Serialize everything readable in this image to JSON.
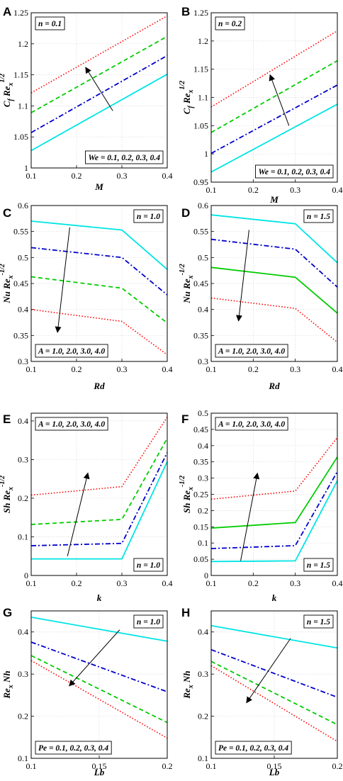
{
  "chart_data": [
    {
      "letter": "A",
      "type": "line",
      "xlim": [
        0.1,
        0.4
      ],
      "ylim": [
        1.0,
        1.25
      ],
      "xticks": [
        "0.1",
        "0.2",
        "0.3",
        "0.4"
      ],
      "yticks": [
        "1",
        "1.05",
        "1.1",
        "1.15",
        "1.2",
        "1.25"
      ],
      "xlabel": "M",
      "ylabel_parts": {
        "a": "C",
        "a_sub": "f",
        "b": " Re",
        "b_sub": "x",
        "b_sup": "1/2"
      },
      "annot_top": "n = 0.1",
      "annot_bottom": "We = 0.1, 0.2, 0.3, 0.4",
      "x": [
        0.1,
        0.4
      ],
      "series": [
        {
          "values": [
            1.028,
            1.151
          ],
          "color": "#00e5e5",
          "dash": "solid"
        },
        {
          "values": [
            1.057,
            1.181
          ],
          "color": "#0000cc",
          "dash": "dashdot"
        },
        {
          "values": [
            1.089,
            1.212
          ],
          "color": "#00cc00",
          "dash": "dashed"
        },
        {
          "values": [
            1.121,
            1.245
          ],
          "color": "#ff0000",
          "dash": "dotted"
        }
      ],
      "arrow": [
        [
          0.28,
          1.092
        ],
        [
          0.22,
          1.162
        ]
      ]
    },
    {
      "letter": "B",
      "type": "line",
      "xlim": [
        0.1,
        0.4
      ],
      "ylim": [
        0.95,
        1.25
      ],
      "xticks": [
        "0.1",
        "0.2",
        "0.3",
        "0.4"
      ],
      "yticks": [
        "0.95",
        "1",
        "1.05",
        "1.1",
        "1.15",
        "1.2",
        "1.25"
      ],
      "xlabel": "M",
      "ylabel_parts": {
        "a": "C",
        "a_sub": "f",
        "b": " Re",
        "b_sub": "x",
        "b_sup": "1/2"
      },
      "annot_top": "n = 0.2",
      "annot_bottom": "We = 0.1, 0.2, 0.3, 0.4",
      "x": [
        0.1,
        0.4
      ],
      "series": [
        {
          "values": [
            0.968,
            1.088
          ],
          "color": "#00e5e5",
          "dash": "solid"
        },
        {
          "values": [
            1.001,
            1.122
          ],
          "color": "#0000cc",
          "dash": "dashdot"
        },
        {
          "values": [
            1.038,
            1.165
          ],
          "color": "#00cc00",
          "dash": "dashed"
        },
        {
          "values": [
            1.083,
            1.218
          ],
          "color": "#ff0000",
          "dash": "dotted"
        }
      ],
      "arrow": [
        [
          0.285,
          1.05
        ],
        [
          0.24,
          1.14
        ]
      ]
    },
    {
      "letter": "C",
      "type": "line",
      "xlim": [
        0.1,
        0.4
      ],
      "ylim": [
        0.3,
        0.6
      ],
      "xticks": [
        "0.1",
        "0.2",
        "0.3",
        "0.4"
      ],
      "yticks": [
        "0.3",
        "0.35",
        "0.4",
        "0.45",
        "0.5",
        "0.55",
        "0.6"
      ],
      "xlabel": "Rd",
      "ylabel_parts": {
        "a": "Nu",
        "a_sub": "",
        "b": " Re",
        "b_sub": "x",
        "b_sup": "-1/2"
      },
      "annot_top": "n = 1.0",
      "annot_bottom": "A = 1.0, 2.0, 3.0, 4.0",
      "x": [
        0.1,
        0.3,
        0.4
      ],
      "series": [
        {
          "values": [
            0.57,
            0.553,
            0.477
          ],
          "color": "#00e5e5",
          "dash": "solid"
        },
        {
          "values": [
            0.519,
            0.5,
            0.428
          ],
          "color": "#0000cc",
          "dash": "dashdot"
        },
        {
          "values": [
            0.463,
            0.441,
            0.374
          ],
          "color": "#00cc00",
          "dash": "dashed"
        },
        {
          "values": [
            0.4,
            0.377,
            0.313
          ],
          "color": "#ff0000",
          "dash": "dotted"
        }
      ],
      "arrow": [
        [
          0.185,
          0.558
        ],
        [
          0.158,
          0.356
        ]
      ]
    },
    {
      "letter": "D",
      "type": "line",
      "xlim": [
        0.1,
        0.4
      ],
      "ylim": [
        0.3,
        0.6
      ],
      "xticks": [
        "0.1",
        "0.2",
        "0.3",
        "0.4"
      ],
      "yticks": [
        "0.3",
        "0.35",
        "0.4",
        "0.45",
        "0.5",
        "0.55",
        "0.6"
      ],
      "xlabel": "Rd",
      "ylabel_parts": {
        "a": "Nu",
        "a_sub": "",
        "b": " Re",
        "b_sub": "x",
        "b_sup": "-1/2"
      },
      "annot_top": "n = 1.5",
      "annot_bottom": "A = 1.0, 2.0, 3.0, 4.0",
      "x": [
        0.1,
        0.3,
        0.4
      ],
      "series": [
        {
          "values": [
            0.582,
            0.565,
            0.49
          ],
          "color": "#00e5e5",
          "dash": "solid"
        },
        {
          "values": [
            0.535,
            0.516,
            0.443
          ],
          "color": "#0000cc",
          "dash": "dashdot"
        },
        {
          "values": [
            0.481,
            0.462,
            0.393
          ],
          "color": "#00cc00",
          "dash": "solid"
        },
        {
          "values": [
            0.422,
            0.402,
            0.337
          ],
          "color": "#ff0000",
          "dash": "dotted"
        }
      ],
      "arrow": [
        [
          0.19,
          0.553
        ],
        [
          0.165,
          0.378
        ]
      ]
    },
    {
      "letter": "E",
      "type": "line",
      "xlim": [
        0.1,
        0.4
      ],
      "ylim": [
        0.0,
        0.42
      ],
      "xticks": [
        "0.1",
        "0.2",
        "0.3",
        "0.4"
      ],
      "yticks": [
        "0",
        "0.1",
        "0.2",
        "0.3",
        "0.4"
      ],
      "xlabel": "k",
      "ylabel_parts": {
        "a": "Sh",
        "a_sub": "",
        "b": " Re",
        "b_sub": "x",
        "b_sup": "-1/2"
      },
      "annot_top": "A = 1.0, 2.0, 3.0, 4.0",
      "annot_bottom": "n = 1.0",
      "x": [
        0.1,
        0.3,
        0.4
      ],
      "series": [
        {
          "values": [
            0.043,
            0.043,
            0.295
          ],
          "color": "#00e5e5",
          "dash": "solid"
        },
        {
          "values": [
            0.077,
            0.083,
            0.318
          ],
          "color": "#0000cc",
          "dash": "dashdot"
        },
        {
          "values": [
            0.132,
            0.145,
            0.355
          ],
          "color": "#00cc00",
          "dash": "dashed"
        },
        {
          "values": [
            0.208,
            0.23,
            0.41
          ],
          "color": "#ff0000",
          "dash": "dotted"
        }
      ],
      "arrow": [
        [
          0.18,
          0.05
        ],
        [
          0.225,
          0.265
        ]
      ]
    },
    {
      "letter": "F",
      "type": "line",
      "xlim": [
        0.1,
        0.4
      ],
      "ylim": [
        0.0,
        0.5
      ],
      "xticks": [
        "0.1",
        "0.2",
        "0.3",
        "0.4"
      ],
      "yticks": [
        "0",
        "0.05",
        "0.1",
        "0.15",
        "0.2",
        "0.25",
        "0.3",
        "0.35",
        "0.4",
        "0.45",
        "0.5"
      ],
      "xlabel": "k",
      "ylabel_parts": {
        "a": "Sh",
        "a_sub": "",
        "b": " Re",
        "b_sub": "x",
        "b_sup": "-1/2"
      },
      "annot_top": "A = 1.0, 2.0, 3.0, 4.0",
      "annot_bottom": "n = 1.5",
      "x": [
        0.1,
        0.3,
        0.4
      ],
      "series": [
        {
          "values": [
            0.043,
            0.045,
            0.292
          ],
          "color": "#00e5e5",
          "dash": "solid"
        },
        {
          "values": [
            0.083,
            0.092,
            0.32
          ],
          "color": "#0000cc",
          "dash": "dashdot"
        },
        {
          "values": [
            0.146,
            0.163,
            0.365
          ],
          "color": "#00cc00",
          "dash": "solid"
        },
        {
          "values": [
            0.235,
            0.26,
            0.425
          ],
          "color": "#ff0000",
          "dash": "dotted"
        }
      ],
      "arrow": [
        [
          0.17,
          0.045
        ],
        [
          0.21,
          0.315
        ]
      ]
    },
    {
      "letter": "G",
      "type": "line",
      "xlim": [
        0.1,
        0.2
      ],
      "ylim": [
        0.1,
        0.45
      ],
      "xticks": [
        "0.1",
        "0.15",
        "0.2"
      ],
      "yticks": [
        "0.1",
        "0.2",
        "0.3",
        "0.4"
      ],
      "xlabel": "Lb",
      "ylabel_parts": {
        "a": "Re",
        "a_sub": "x",
        "b": " Nh",
        "b_sub": "",
        "b_sup": ""
      },
      "annot_top": "n = 1.0",
      "annot_bottom": "Pe = 0.1, 0.2, 0.3, 0.4",
      "x": [
        0.1,
        0.2
      ],
      "series": [
        {
          "values": [
            0.435,
            0.378
          ],
          "color": "#00e5e5",
          "dash": "solid"
        },
        {
          "values": [
            0.376,
            0.258
          ],
          "color": "#0000cc",
          "dash": "dashdot"
        },
        {
          "values": [
            0.344,
            0.185
          ],
          "color": "#00cc00",
          "dash": "dashed"
        },
        {
          "values": [
            0.332,
            0.148
          ],
          "color": "#ff0000",
          "dash": "dotted"
        }
      ],
      "arrow": [
        [
          0.165,
          0.405
        ],
        [
          0.128,
          0.272
        ]
      ]
    },
    {
      "letter": "H",
      "type": "line",
      "xlim": [
        0.1,
        0.2
      ],
      "ylim": [
        0.1,
        0.45
      ],
      "xticks": [
        "0.1",
        "0.15",
        "0.2"
      ],
      "yticks": [
        "0.1",
        "0.2",
        "0.3",
        "0.4"
      ],
      "xlabel": "Lb",
      "ylabel_parts": {
        "a": "Re",
        "a_sub": "x",
        "b": " Nh",
        "b_sub": "",
        "b_sup": ""
      },
      "annot_top": "n = 1.5",
      "annot_bottom": "Pe = 0.1, 0.2, 0.3, 0.4",
      "x": [
        0.1,
        0.2
      ],
      "series": [
        {
          "values": [
            0.415,
            0.362
          ],
          "color": "#00e5e5",
          "dash": "solid"
        },
        {
          "values": [
            0.358,
            0.245
          ],
          "color": "#0000cc",
          "dash": "dashdot"
        },
        {
          "values": [
            0.33,
            0.18
          ],
          "color": "#00cc00",
          "dash": "dashed"
        },
        {
          "values": [
            0.32,
            0.14
          ],
          "color": "#ff0000",
          "dash": "dotted"
        }
      ],
      "arrow": [
        [
          0.163,
          0.385
        ],
        [
          0.128,
          0.232
        ]
      ]
    }
  ]
}
